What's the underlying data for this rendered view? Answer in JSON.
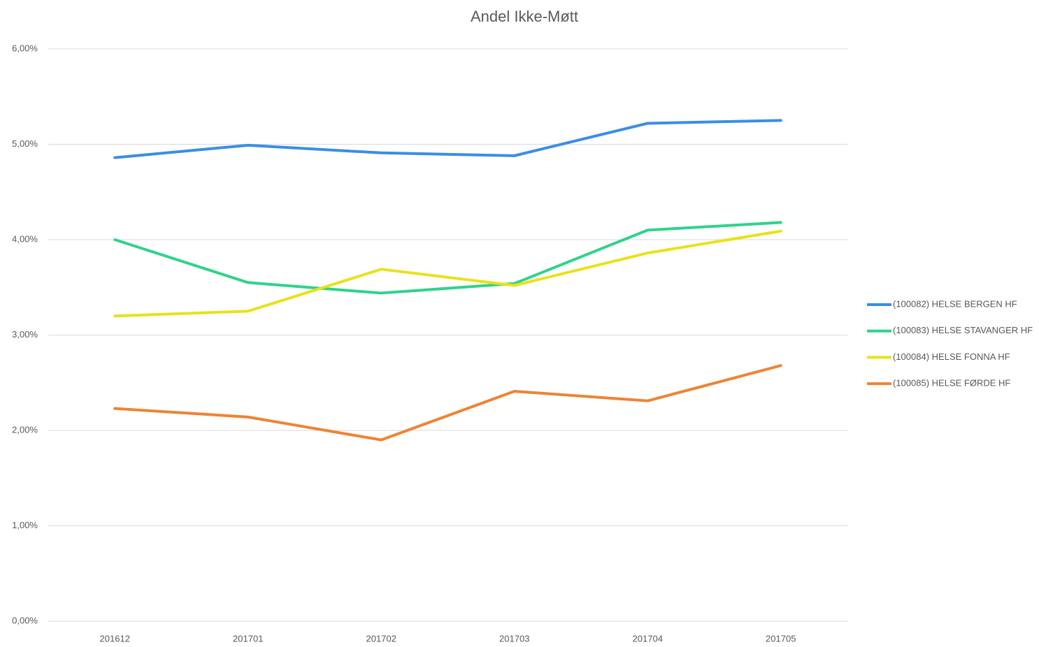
{
  "chart_data": {
    "type": "line",
    "title": "Andel Ikke-Møtt",
    "categories": [
      "201612",
      "201701",
      "201702",
      "201703",
      "201704",
      "201705"
    ],
    "series": [
      {
        "name": "(100082) HELSE BERGEN HF",
        "color": "#3a8ee6",
        "values": [
          4.86,
          4.99,
          4.91,
          4.88,
          5.22,
          5.25
        ]
      },
      {
        "name": "(100083) HELSE STAVANGER HF",
        "color": "#2fd38a",
        "values": [
          4.0,
          3.55,
          3.44,
          3.54,
          4.1,
          4.18
        ]
      },
      {
        "name": "(100084) HELSE FONNA HF",
        "color": "#e8e21a",
        "values": [
          3.2,
          3.25,
          3.69,
          3.52,
          3.86,
          4.09
        ]
      },
      {
        "name": "(100085) HELSE FØRDE HF",
        "color": "#ee8433",
        "values": [
          2.23,
          2.14,
          1.9,
          2.41,
          2.31,
          2.68
        ]
      }
    ],
    "ylim": [
      0,
      6
    ],
    "yticks": [
      {
        "value": 0,
        "label": "0,00%"
      },
      {
        "value": 1,
        "label": "1,00%"
      },
      {
        "value": 2,
        "label": "2,00%"
      },
      {
        "value": 3,
        "label": "3,00%"
      },
      {
        "value": 4,
        "label": "4,00%"
      },
      {
        "value": 5,
        "label": "5,00%"
      },
      {
        "value": 6,
        "label": "6,00%"
      }
    ],
    "grid": true,
    "legend": "right"
  }
}
